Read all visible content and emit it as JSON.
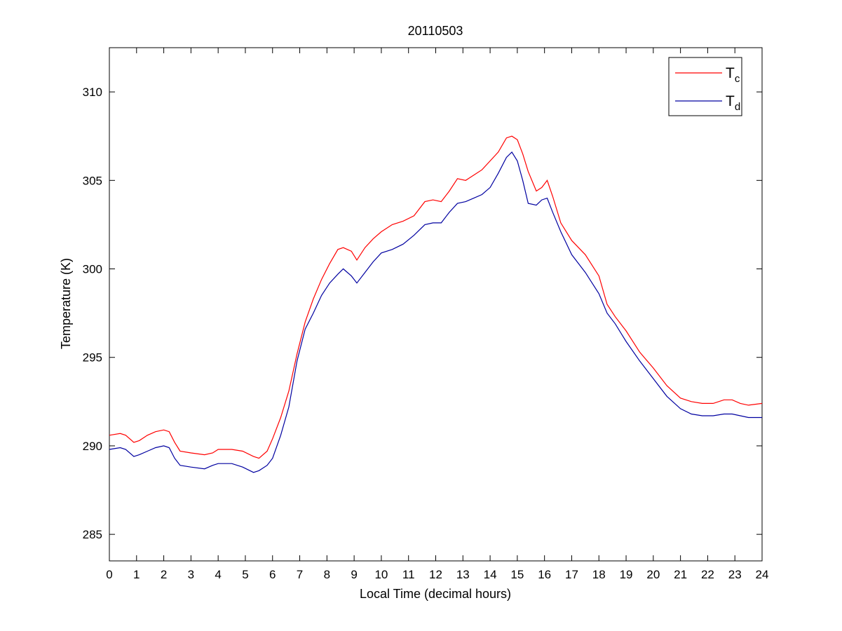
{
  "chart_data": {
    "type": "line",
    "title": "20110503",
    "xlabel": "Local Time (decimal hours)",
    "ylabel": "Temperature (K)",
    "xlim": [
      0,
      24
    ],
    "ylim": [
      283.5,
      312.5
    ],
    "xticks": [
      0,
      1,
      2,
      3,
      4,
      5,
      6,
      7,
      8,
      9,
      10,
      11,
      12,
      13,
      14,
      15,
      16,
      17,
      18,
      19,
      20,
      21,
      22,
      23,
      24
    ],
    "yticks": [
      285,
      290,
      295,
      300,
      305,
      310
    ],
    "grid": false,
    "legend_position": "top-right",
    "series": [
      {
        "name": "T",
        "subscript": "c",
        "color": "#ff0000",
        "x": [
          0,
          0.4,
          0.6,
          0.9,
          1.1,
          1.4,
          1.7,
          2.0,
          2.2,
          2.4,
          2.6,
          3.0,
          3.5,
          3.8,
          4.0,
          4.5,
          4.9,
          5.3,
          5.5,
          5.8,
          6.0,
          6.3,
          6.6,
          6.9,
          7.2,
          7.5,
          7.8,
          8.1,
          8.4,
          8.6,
          8.9,
          9.1,
          9.4,
          9.7,
          10.0,
          10.4,
          10.8,
          11.2,
          11.6,
          11.9,
          12.2,
          12.5,
          12.8,
          13.1,
          13.4,
          13.7,
          14.0,
          14.3,
          14.6,
          14.8,
          15.0,
          15.2,
          15.4,
          15.7,
          15.9,
          16.1,
          16.3,
          16.6,
          17.0,
          17.5,
          18.0,
          18.3,
          18.6,
          19.0,
          19.5,
          20.0,
          20.5,
          21.0,
          21.4,
          21.8,
          22.2,
          22.6,
          22.9,
          23.2,
          23.5,
          24.0
        ],
        "y": [
          290.6,
          290.7,
          290.6,
          290.2,
          290.3,
          290.6,
          290.8,
          290.9,
          290.8,
          290.2,
          289.7,
          289.6,
          289.5,
          289.6,
          289.8,
          289.8,
          289.7,
          289.4,
          289.3,
          289.7,
          290.4,
          291.6,
          293.1,
          295.2,
          297.0,
          298.3,
          299.4,
          300.3,
          301.1,
          301.2,
          301.0,
          300.5,
          301.2,
          301.7,
          302.1,
          302.5,
          302.7,
          303.0,
          303.8,
          303.9,
          303.8,
          304.4,
          305.1,
          305.0,
          305.3,
          305.6,
          306.1,
          306.6,
          307.4,
          307.5,
          307.3,
          306.5,
          305.5,
          304.4,
          304.6,
          305.0,
          304.1,
          302.6,
          301.6,
          300.8,
          299.6,
          298.0,
          297.3,
          296.5,
          295.3,
          294.4,
          293.4,
          292.7,
          292.5,
          292.4,
          292.4,
          292.6,
          292.6,
          292.4,
          292.3,
          292.4
        ]
      },
      {
        "name": "T",
        "subscript": "d",
        "color": "#0000a0",
        "x": [
          0,
          0.4,
          0.6,
          0.9,
          1.1,
          1.4,
          1.7,
          2.0,
          2.2,
          2.4,
          2.6,
          3.0,
          3.5,
          3.8,
          4.0,
          4.5,
          4.9,
          5.3,
          5.5,
          5.8,
          6.0,
          6.3,
          6.6,
          6.9,
          7.2,
          7.5,
          7.8,
          8.1,
          8.4,
          8.6,
          8.9,
          9.1,
          9.4,
          9.7,
          10.0,
          10.4,
          10.8,
          11.2,
          11.6,
          11.9,
          12.2,
          12.5,
          12.8,
          13.1,
          13.4,
          13.7,
          14.0,
          14.3,
          14.6,
          14.8,
          15.0,
          15.2,
          15.4,
          15.7,
          15.9,
          16.1,
          16.3,
          16.6,
          17.0,
          17.5,
          18.0,
          18.3,
          18.6,
          19.0,
          19.5,
          20.0,
          20.5,
          21.0,
          21.4,
          21.8,
          22.2,
          22.6,
          22.9,
          23.2,
          23.5,
          24.0
        ],
        "y": [
          289.8,
          289.9,
          289.8,
          289.4,
          289.5,
          289.7,
          289.9,
          290.0,
          289.9,
          289.3,
          288.9,
          288.8,
          288.7,
          288.9,
          289.0,
          289.0,
          288.8,
          288.5,
          288.6,
          288.9,
          289.3,
          290.6,
          292.2,
          294.8,
          296.6,
          297.5,
          298.5,
          299.2,
          299.7,
          300.0,
          299.6,
          299.2,
          299.8,
          300.4,
          300.9,
          301.1,
          301.4,
          301.9,
          302.5,
          302.6,
          302.6,
          303.2,
          303.7,
          303.8,
          304.0,
          304.2,
          304.6,
          305.4,
          306.3,
          306.6,
          306.1,
          305.0,
          303.7,
          303.6,
          303.9,
          304.0,
          303.2,
          302.1,
          300.8,
          299.8,
          298.6,
          297.5,
          296.9,
          295.9,
          294.8,
          293.8,
          292.8,
          292.1,
          291.8,
          291.7,
          291.7,
          291.8,
          291.8,
          291.7,
          291.6,
          291.6
        ]
      }
    ]
  }
}
